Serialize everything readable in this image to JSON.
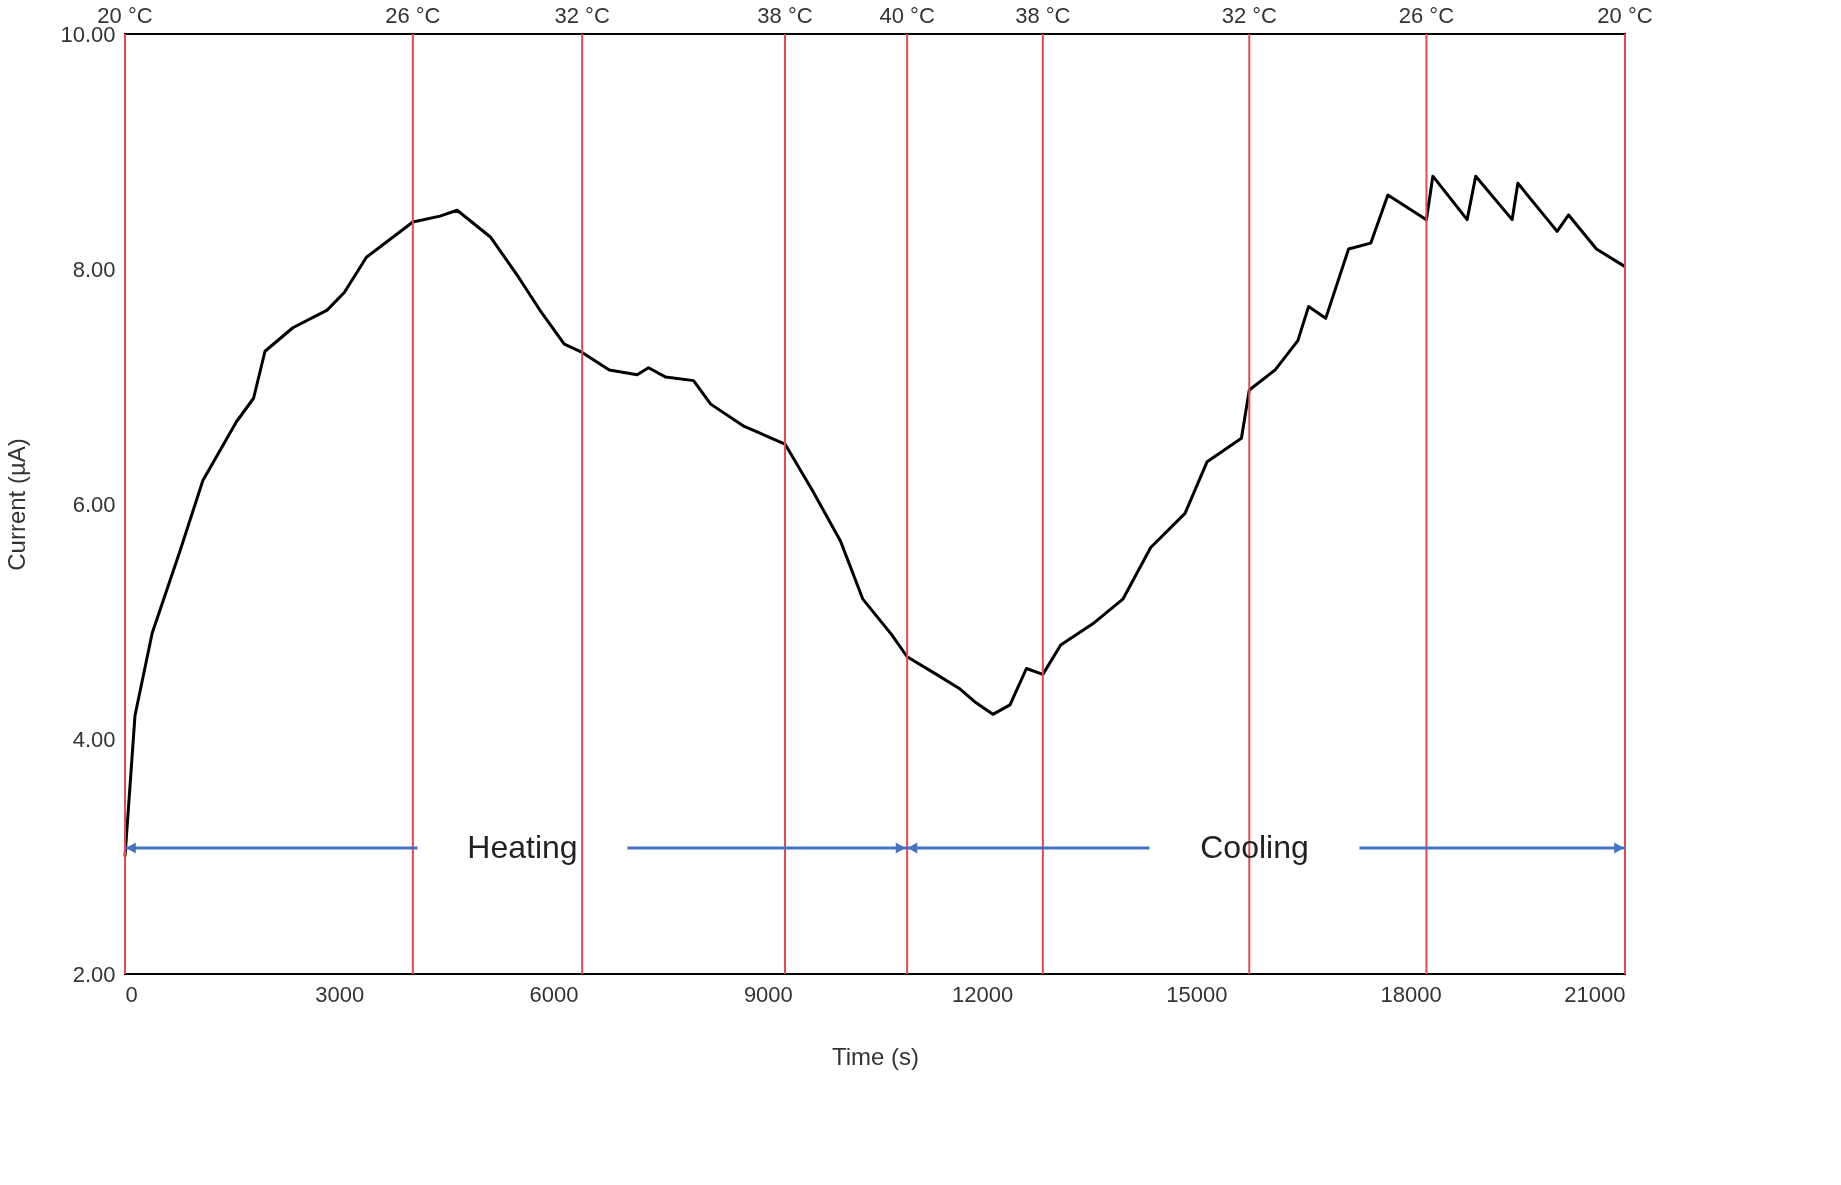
{
  "chart_data": {
    "type": "line",
    "xlabel": "Time (s)",
    "ylabel": "Current (µA)",
    "xlim": [
      0,
      21000
    ],
    "xticks": [
      0,
      3000,
      6000,
      9000,
      12000,
      15000,
      18000,
      21000
    ],
    "ylim": [
      2,
      10
    ],
    "yticks": [
      {
        "value": 2,
        "label": "2.00"
      },
      {
        "value": 4,
        "label": "4.00"
      },
      {
        "value": 6,
        "label": "6.00"
      },
      {
        "value": 8,
        "label": "8.00"
      },
      {
        "value": 10,
        "label": "10.00"
      }
    ],
    "grid": false,
    "marker": "none",
    "line_style": "solid",
    "series": [
      {
        "color": "#000000",
        "x": [
          0,
          140,
          380,
          770,
          1090,
          1560,
          1800,
          1960,
          2350,
          2830,
          3070,
          3380,
          4030,
          4410,
          4650,
          5120,
          5510,
          5830,
          6150,
          6400,
          6780,
          7170,
          7330,
          7570,
          7960,
          8200,
          8670,
          9240,
          9620,
          10020,
          10330,
          10730,
          10950,
          11360,
          11680,
          11910,
          12150,
          12390,
          12620,
          12850,
          13100,
          13570,
          13970,
          14360,
          14840,
          15150,
          15630,
          15740,
          16100,
          16420,
          16570,
          16810,
          17130,
          17440,
          17680,
          18220,
          18310,
          18790,
          18910,
          19420,
          19500,
          20050,
          20210,
          20600,
          21000
        ],
        "values": [
          3.0,
          4.2,
          4.9,
          5.6,
          6.2,
          6.7,
          6.9,
          7.3,
          7.5,
          7.65,
          7.8,
          8.1,
          8.4,
          8.45,
          8.5,
          8.27,
          7.93,
          7.63,
          7.36,
          7.29,
          7.14,
          7.1,
          7.16,
          7.08,
          7.05,
          6.85,
          6.66,
          6.51,
          6.12,
          5.68,
          5.19,
          4.89,
          4.7,
          4.55,
          4.43,
          4.31,
          4.21,
          4.29,
          4.6,
          4.55,
          4.8,
          4.99,
          5.19,
          5.63,
          5.92,
          6.36,
          6.56,
          6.97,
          7.14,
          7.39,
          7.68,
          7.58,
          8.17,
          8.22,
          8.63,
          8.42,
          8.79,
          8.42,
          8.79,
          8.42,
          8.73,
          8.32,
          8.46,
          8.17,
          8.02
        ]
      }
    ],
    "ref_lines": [
      {
        "axis": "x",
        "value": 0,
        "label": "20 °C",
        "color": "#e8474c"
      },
      {
        "axis": "x",
        "value": 4030,
        "label": "26 °C",
        "color": "#e8474c"
      },
      {
        "axis": "x",
        "value": 6400,
        "label": "32 °C",
        "color": "#e8474c"
      },
      {
        "axis": "x",
        "value": 9240,
        "label": "38 °C",
        "color": "#e8474c"
      },
      {
        "axis": "x",
        "value": 10950,
        "label": "40 °C",
        "color": "#e8474c"
      },
      {
        "axis": "x",
        "value": 12850,
        "label": "38 °C",
        "color": "#e8474c"
      },
      {
        "axis": "x",
        "value": 15740,
        "label": "32 °C",
        "color": "#e8474c"
      },
      {
        "axis": "x",
        "value": 18220,
        "label": "26 °C",
        "color": "#e8474c"
      },
      {
        "axis": "x",
        "value": 21000,
        "label": "20 °C",
        "color": "#e8474c"
      }
    ],
    "annotations": [
      "Heating",
      "Cooling"
    ]
  }
}
